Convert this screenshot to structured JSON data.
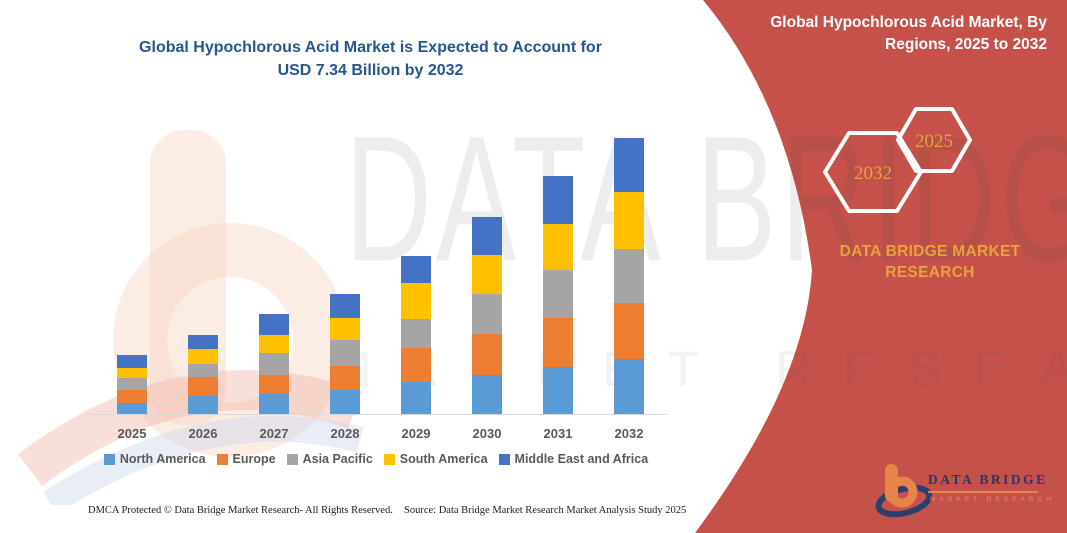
{
  "title": {
    "line1": "Global Hypochlorous Acid Market is Expected to Account for",
    "line2": "USD 7.34 Billion by 2032"
  },
  "panel": {
    "bg_color": "#C5514A",
    "accent_color": "#E8A43C",
    "title_line1": "Global Hypochlorous Acid Market, By",
    "title_line2": "Regions, 2025 to 2032",
    "hexagon_left_label": "2032",
    "hexagon_right_label": "2025",
    "brand_line1": "DATA BRIDGE MARKET",
    "brand_line2": "RESEARCH"
  },
  "watermark": {
    "line1": "DATA BRIDGE",
    "line2": "MARKET RESEARCH"
  },
  "logo": {
    "name": "DATA BRIDGE",
    "subtitle": "MARKET RESEARCH"
  },
  "footer": {
    "left": "DMCA Protected © Data Bridge Market Research-  All Rights Reserved.",
    "right": "Source: Data Bridge Market Research  Market Analysis Study 2025"
  },
  "chart_data": {
    "type": "bar",
    "stacked": true,
    "title": "Global Hypochlorous Acid Market, By Regions, 2025 to 2032",
    "unit": "USD Billion",
    "annotation": "USD 7.34 Billion by 2032",
    "categories": [
      "2025",
      "2026",
      "2027",
      "2028",
      "2029",
      "2030",
      "2031",
      "2032"
    ],
    "series": [
      {
        "name": "North America",
        "color": "#5B9BD5",
        "values": [
          0.3,
          0.47,
          0.53,
          0.63,
          0.84,
          1.04,
          1.25,
          1.47
        ]
      },
      {
        "name": "Europe",
        "color": "#ED7D31",
        "values": [
          0.33,
          0.52,
          0.52,
          0.66,
          0.91,
          1.09,
          1.3,
          1.47
        ]
      },
      {
        "name": "Asia Pacific",
        "color": "#A5A5A5",
        "values": [
          0.32,
          0.35,
          0.58,
          0.68,
          0.77,
          1.06,
          1.27,
          1.46
        ]
      },
      {
        "name": "South America",
        "color": "#FFC000",
        "values": [
          0.28,
          0.39,
          0.46,
          0.58,
          0.97,
          1.03,
          1.22,
          1.5
        ]
      },
      {
        "name": "Middle East and Africa",
        "color": "#4472C4",
        "values": [
          0.33,
          0.38,
          0.57,
          0.63,
          0.72,
          1.01,
          1.3,
          1.44
        ]
      }
    ],
    "totals": [
      1.56,
      2.11,
      2.66,
      3.18,
      4.21,
      5.23,
      6.34,
      7.34
    ],
    "ylim": [
      0,
      7.5
    ],
    "grid": false,
    "y_axis_visible": false,
    "legend_position": "bottom"
  }
}
